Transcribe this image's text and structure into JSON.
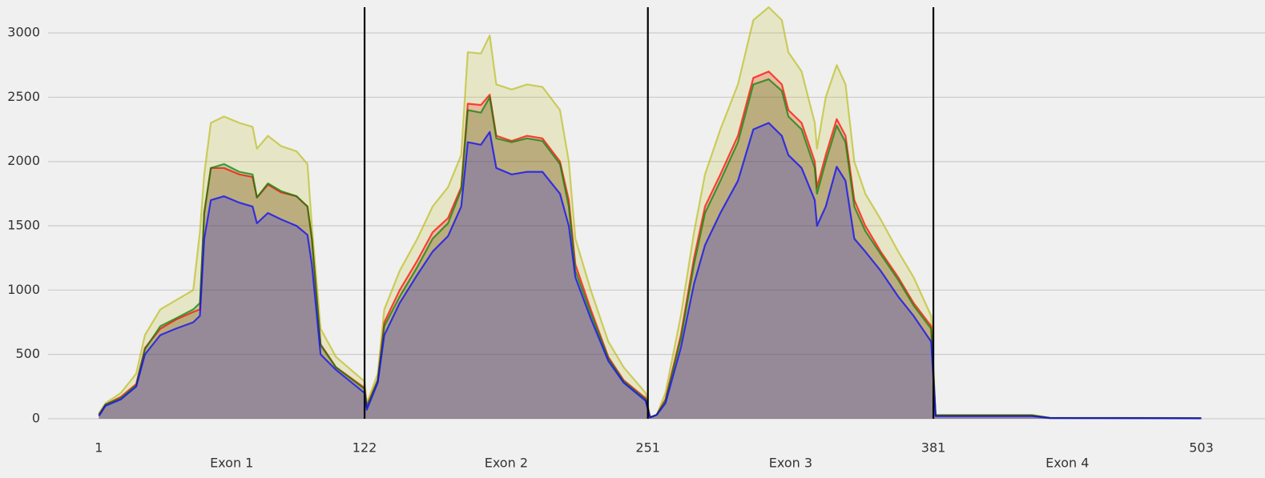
{
  "chart_data": {
    "type": "area",
    "x": [
      1,
      4,
      11,
      18,
      22,
      29,
      36,
      44,
      47,
      49,
      52,
      58,
      65,
      71,
      73,
      78,
      84,
      91,
      96,
      98,
      102,
      109,
      122,
      123,
      128,
      131,
      138,
      146,
      153,
      160,
      166,
      169,
      175,
      179,
      182,
      189,
      196,
      203,
      211,
      215,
      218,
      225,
      233,
      240,
      250,
      252,
      255,
      259,
      266,
      272,
      277,
      284,
      292,
      299,
      306,
      312,
      315,
      321,
      327,
      328,
      332,
      337,
      341,
      345,
      350,
      357,
      365,
      372,
      380,
      382,
      394,
      426,
      434,
      503
    ],
    "series": [
      {
        "color": "#bcbd22",
        "values": [
          40,
          120,
          200,
          350,
          650,
          850,
          920,
          1000,
          1450,
          1900,
          2300,
          2350,
          2300,
          2270,
          2100,
          2200,
          2120,
          2080,
          1980,
          1500,
          700,
          480,
          290,
          120,
          350,
          850,
          1150,
          1400,
          1650,
          1800,
          2050,
          2850,
          2840,
          2980,
          2600,
          2560,
          2600,
          2580,
          2400,
          2000,
          1400,
          1000,
          600,
          400,
          200,
          10,
          30,
          200,
          800,
          1450,
          1900,
          2250,
          2600,
          3100,
          3200,
          3100,
          2850,
          2700,
          2300,
          2100,
          2500,
          2750,
          2600,
          2000,
          1750,
          1550,
          1300,
          1100,
          800,
          30,
          30,
          30,
          8,
          5
        ]
      },
      {
        "color": "#ff0000",
        "values": [
          30,
          110,
          170,
          270,
          550,
          700,
          770,
          830,
          850,
          1600,
          1950,
          1950,
          1900,
          1880,
          1720,
          1820,
          1760,
          1730,
          1650,
          1400,
          580,
          400,
          240,
          100,
          300,
          750,
          1000,
          1230,
          1450,
          1560,
          1800,
          2450,
          2440,
          2520,
          2200,
          2160,
          2200,
          2180,
          2000,
          1700,
          1200,
          850,
          480,
          300,
          160,
          10,
          30,
          150,
          650,
          1250,
          1650,
          1900,
          2200,
          2650,
          2700,
          2600,
          2400,
          2300,
          2000,
          1800,
          2050,
          2330,
          2200,
          1700,
          1500,
          1300,
          1100,
          900,
          720,
          25,
          25,
          25,
          6,
          4
        ]
      },
      {
        "color": "#008000",
        "values": [
          30,
          110,
          160,
          260,
          540,
          720,
          780,
          850,
          900,
          1600,
          1950,
          1980,
          1920,
          1900,
          1720,
          1830,
          1770,
          1730,
          1650,
          1400,
          570,
          400,
          230,
          90,
          300,
          720,
          950,
          1180,
          1400,
          1520,
          1780,
          2400,
          2380,
          2500,
          2180,
          2150,
          2180,
          2160,
          1980,
          1650,
          1150,
          820,
          470,
          290,
          150,
          10,
          30,
          140,
          620,
          1200,
          1600,
          1850,
          2150,
          2600,
          2640,
          2550,
          2350,
          2250,
          1950,
          1750,
          2000,
          2280,
          2150,
          1650,
          1460,
          1280,
          1080,
          880,
          700,
          25,
          25,
          25,
          6,
          4
        ]
      },
      {
        "color": "#0000ff",
        "values": [
          20,
          100,
          150,
          250,
          500,
          650,
          700,
          750,
          800,
          1400,
          1700,
          1730,
          1680,
          1650,
          1520,
          1600,
          1550,
          1500,
          1430,
          1200,
          500,
          380,
          200,
          70,
          280,
          650,
          900,
          1120,
          1300,
          1420,
          1650,
          2150,
          2130,
          2230,
          1950,
          1900,
          1920,
          1920,
          1750,
          1500,
          1100,
          780,
          450,
          280,
          140,
          10,
          30,
          120,
          550,
          1050,
          1350,
          1600,
          1850,
          2250,
          2300,
          2200,
          2050,
          1950,
          1700,
          1500,
          1650,
          1960,
          1850,
          1400,
          1300,
          1150,
          950,
          800,
          600,
          20,
          20,
          20,
          5,
          3
        ]
      }
    ],
    "xlim": [
      -44,
      532
    ],
    "xticks": [
      1,
      122,
      251,
      381,
      503
    ],
    "section_labels": [
      "Exon 1",
      "Exon 2",
      "Exon 3",
      "Exon 4"
    ],
    "vlines": [
      122,
      251,
      381
    ],
    "ylim": [
      -100,
      3200
    ],
    "yticks": [
      0,
      500,
      1000,
      1500,
      2000,
      2500,
      3000
    ],
    "grid": true
  }
}
